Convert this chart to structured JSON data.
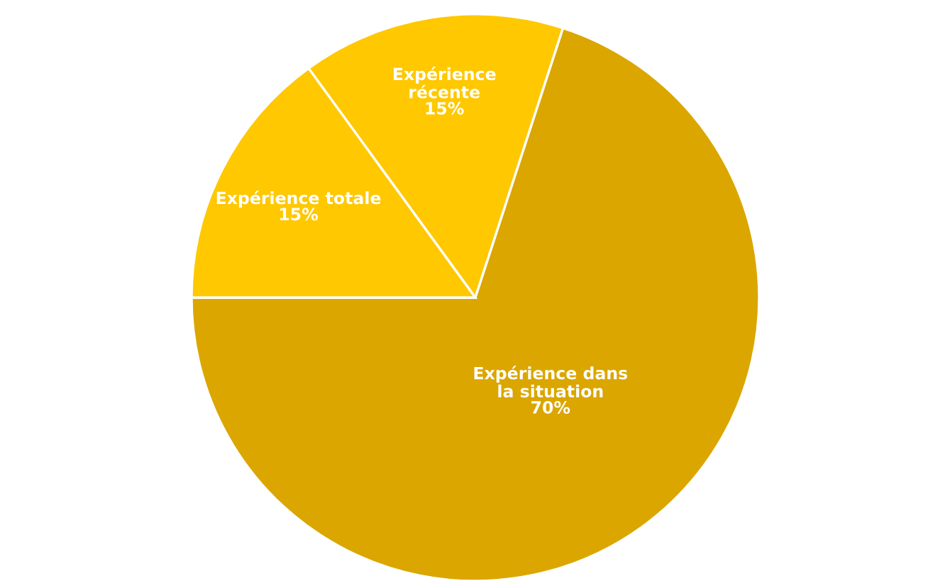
{
  "chart_data": {
    "type": "pie",
    "categories": [
      "Expérience\nrécente",
      "Expérience dans\nla situation",
      "Expérience totale"
    ],
    "values": [
      15,
      70,
      15
    ],
    "colors": [
      "#ffc800",
      "#dba600",
      "#ffc800"
    ],
    "value_labels": [
      "15%",
      "70%",
      "15%"
    ],
    "legend": false
  }
}
